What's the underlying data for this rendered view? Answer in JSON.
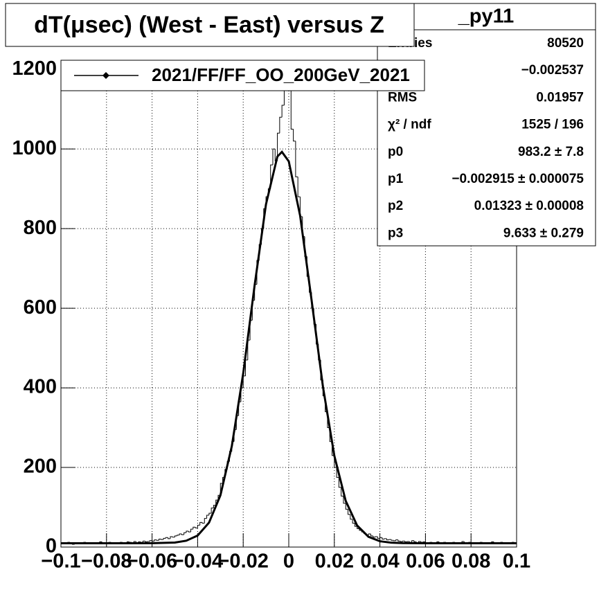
{
  "chart_data": {
    "type": "histogram",
    "title": "dT(μsec) (West - East) versus Z",
    "color": "#000000",
    "bins": [
      -0.1,
      -0.099,
      -0.098,
      -0.097,
      -0.096,
      -0.095,
      -0.094,
      -0.093,
      -0.092,
      -0.091,
      -0.09,
      -0.089,
      -0.088,
      -0.087,
      -0.086,
      -0.085,
      -0.084,
      -0.083,
      -0.082,
      -0.081,
      -0.08,
      -0.079,
      -0.078,
      -0.077,
      -0.076,
      -0.075,
      -0.074,
      -0.073,
      -0.072,
      -0.071,
      -0.07,
      -0.069,
      -0.068,
      -0.067,
      -0.066,
      -0.065,
      -0.064,
      -0.063,
      -0.062,
      -0.061,
      -0.06,
      -0.059,
      -0.058,
      -0.057,
      -0.056,
      -0.055,
      -0.054,
      -0.053,
      -0.052,
      -0.051,
      -0.05,
      -0.049,
      -0.048,
      -0.047,
      -0.046,
      -0.045,
      -0.044,
      -0.043,
      -0.042,
      -0.041,
      -0.04,
      -0.039,
      -0.038,
      -0.037,
      -0.036,
      -0.035,
      -0.034,
      -0.033,
      -0.032,
      -0.031,
      -0.03,
      -0.029,
      -0.028,
      -0.027,
      -0.026,
      -0.025,
      -0.024,
      -0.023,
      -0.022,
      -0.021,
      -0.02,
      -0.019,
      -0.018,
      -0.017,
      -0.016,
      -0.015,
      -0.014,
      -0.013,
      -0.012,
      -0.011,
      -0.01,
      -0.009,
      -0.008,
      -0.007,
      -0.006,
      -0.005,
      -0.004,
      -0.003,
      -0.002,
      -0.001,
      0,
      0.001,
      0.002,
      0.003,
      0.004,
      0.005,
      0.006,
      0.007,
      0.008,
      0.009,
      0.01,
      0.011,
      0.012,
      0.013,
      0.014,
      0.015,
      0.016,
      0.017,
      0.018,
      0.019,
      0.02,
      0.021,
      0.022,
      0.023,
      0.024,
      0.025,
      0.026,
      0.027,
      0.028,
      0.029,
      0.03,
      0.031,
      0.032,
      0.033,
      0.034,
      0.035,
      0.036,
      0.037,
      0.038,
      0.039,
      0.04,
      0.041,
      0.042,
      0.043,
      0.044,
      0.045,
      0.046,
      0.047,
      0.048,
      0.049,
      0.05,
      0.051,
      0.052,
      0.053,
      0.054,
      0.055,
      0.056,
      0.057,
      0.058,
      0.059,
      0.06,
      0.061,
      0.062,
      0.063,
      0.064,
      0.065,
      0.066,
      0.067,
      0.068,
      0.069,
      0.07,
      0.071,
      0.072,
      0.073,
      0.074,
      0.075,
      0.076,
      0.077,
      0.078,
      0.079,
      0.08,
      0.081,
      0.082,
      0.083,
      0.084,
      0.085,
      0.086,
      0.087,
      0.088,
      0.089,
      0.09,
      0.091,
      0.092,
      0.093,
      0.094,
      0.095,
      0.096,
      0.097,
      0.098,
      0.099,
      0.1
    ],
    "values": [
      8,
      11,
      9,
      12,
      10,
      7,
      9,
      11,
      10,
      8,
      12,
      9,
      10,
      11,
      8,
      10,
      9,
      13,
      10,
      11,
      9,
      12,
      10,
      8,
      11,
      10,
      12,
      9,
      11,
      13,
      12,
      10,
      14,
      11,
      13,
      12,
      15,
      13,
      14,
      16,
      15,
      18,
      17,
      20,
      19,
      22,
      24,
      21,
      26,
      25,
      28,
      30,
      33,
      31,
      36,
      40,
      38,
      45,
      50,
      48,
      55,
      62,
      60,
      72,
      80,
      85,
      98,
      105,
      118,
      130,
      160,
      175,
      195,
      215,
      240,
      265,
      295,
      330,
      365,
      400,
      430,
      470,
      520,
      570,
      620,
      660,
      720,
      760,
      800,
      850,
      880,
      900,
      960,
      1000,
      970,
      1040,
      1080,
      1110,
      1180,
      1260,
      1240,
      1050,
      1020,
      930,
      880,
      830,
      780,
      730,
      680,
      640,
      600,
      560,
      510,
      470,
      420,
      380,
      340,
      300,
      265,
      230,
      200,
      175,
      150,
      128,
      110,
      95,
      82,
      70,
      60,
      52,
      46,
      42,
      38,
      34,
      30,
      33,
      28,
      25,
      26,
      22,
      24,
      20,
      21,
      18,
      19,
      17,
      16,
      18,
      15,
      14,
      15,
      13,
      14,
      12,
      16,
      13,
      11,
      14,
      12,
      13,
      11,
      10,
      12,
      9,
      11,
      13,
      10,
      9,
      12,
      10,
      11,
      8,
      12,
      10,
      9,
      11,
      14,
      10,
      9,
      12,
      10,
      11,
      9,
      10,
      12,
      8,
      11,
      10,
      9,
      13,
      10,
      11,
      9,
      12,
      10,
      8,
      11,
      10,
      12,
      9
    ],
    "fit": {
      "color": "#000000",
      "x": [
        -0.1,
        -0.09,
        -0.08,
        -0.07,
        -0.06,
        -0.05,
        -0.045,
        -0.04,
        -0.035,
        -0.03,
        -0.025,
        -0.02,
        -0.015,
        -0.01,
        -0.005,
        -0.003,
        0,
        0.005,
        0.01,
        0.015,
        0.02,
        0.025,
        0.03,
        0.035,
        0.04,
        0.045,
        0.05,
        0.06,
        0.07,
        0.08,
        0.09,
        0.1
      ],
      "y": [
        9.6,
        9.6,
        9.6,
        9.6,
        9.7,
        11.4,
        15.9,
        28.9,
        61.4,
        130,
        253.4,
        436,
        657,
        861,
        981,
        992.8,
        969,
        832,
        621,
        403,
        229.5,
        116,
        54.2,
        25.8,
        14.7,
        11,
        9.9,
        9.6,
        9.6,
        9.6,
        9.6,
        9.6
      ]
    },
    "legend": {
      "label": "2021/FF/FF_OO_200GeV_2021",
      "position": "top-left"
    },
    "stats": {
      "title": "_py11",
      "rows": [
        {
          "label": "Entries",
          "value": "80520"
        },
        {
          "value": "−0.002537"
        },
        {
          "label": "RMS",
          "value": "0.01957"
        },
        {
          "label": "χ² / ndf",
          "value": "1525 / 196"
        },
        {
          "label": "p0",
          "value": "983.2 ± 7.8"
        },
        {
          "label": "p1",
          "value": "−0.002915 ± 0.000075"
        },
        {
          "label": "p2",
          "value": "0.01323 ± 0.00008"
        },
        {
          "label": "p3",
          "value": "9.633 ± 0.279"
        }
      ]
    },
    "xlim": [
      -0.1,
      0.1
    ],
    "ylim": [
      0,
      1223
    ],
    "xticks": [
      {
        "value": -0.1,
        "label": "−0.1"
      },
      {
        "value": -0.08,
        "label": "−0.08"
      },
      {
        "value": -0.06,
        "label": "−0.06"
      },
      {
        "value": -0.04,
        "label": "−0.04"
      },
      {
        "value": -0.02,
        "label": "−0.02"
      },
      0,
      0.02,
      0.04,
      0.06,
      0.08,
      0.1
    ],
    "yticks": [
      0,
      200,
      400,
      600,
      800,
      1000,
      1200
    ],
    "grid": true
  }
}
